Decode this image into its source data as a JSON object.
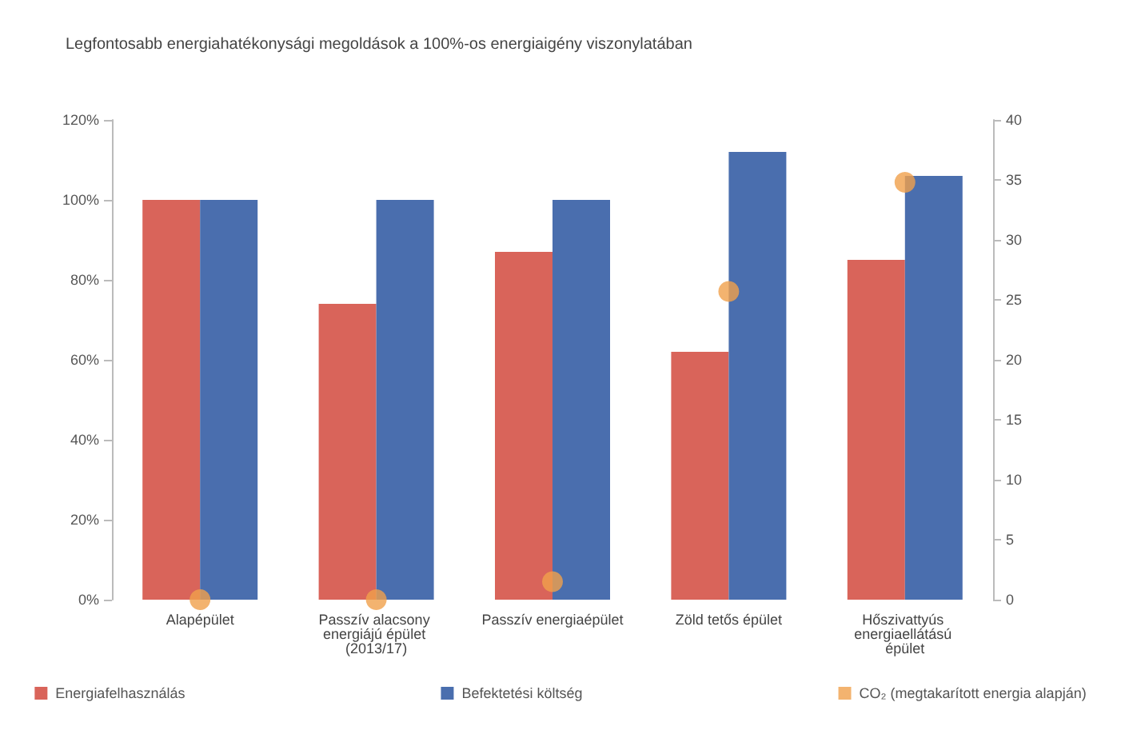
{
  "chart_data": {
    "type": "bar",
    "title": "Legfontosabb energiahatékonysági megoldások a 100%-os energiaigény viszonylatában",
    "categories": [
      "Alapépület",
      "Passzív alacsony energiájú épület (2013/17)",
      "Passzív energiaépület",
      "Zöld tetős épület",
      "Hőszivattyús energiaellátású épület"
    ],
    "series": [
      {
        "name": "Energiafelhasználás",
        "color": "#d9645a",
        "values": [
          100,
          74,
          87,
          62,
          85
        ]
      },
      {
        "name": "Befektetési költség",
        "color": "#4a6eae",
        "values": [
          100,
          100,
          100,
          112,
          106
        ]
      },
      {
        "name": "CO₂ (megtakarított energia alapján)",
        "type": "scatter",
        "axis": "y2",
        "color": "#f0a04b",
        "values": [
          0,
          0,
          1.5,
          25.7,
          34.8
        ]
      }
    ],
    "ylim": [
      0,
      120
    ],
    "yticks": [
      {
        "value": 0,
        "label": "0%"
      },
      {
        "value": 20,
        "label": "20%"
      },
      {
        "value": 40,
        "label": "40%"
      },
      {
        "value": 60,
        "label": "60%"
      },
      {
        "value": 80,
        "label": "80%"
      },
      {
        "value": 100,
        "label": "100%"
      },
      {
        "value": 120,
        "label": "120%"
      }
    ],
    "y2lim": [
      0,
      40
    ],
    "y2ticks": [
      0,
      5,
      10,
      15,
      20,
      25,
      30,
      35,
      40
    ],
    "grid": false,
    "legend": "bottom",
    "marker": "circle"
  }
}
